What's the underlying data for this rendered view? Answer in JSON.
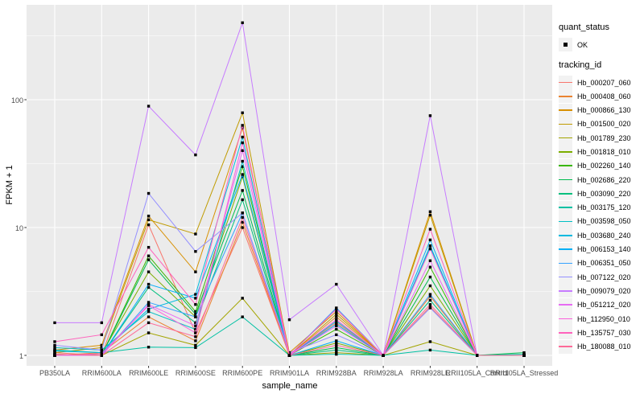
{
  "legend": {
    "quant_status_title": "quant_status",
    "quant_status_items": [
      {
        "label": "OK",
        "marker": "black-square"
      }
    ],
    "tracking_id_title": "tracking_id"
  },
  "chart_data": {
    "type": "line",
    "title": "",
    "xlabel": "sample_name",
    "ylabel": "FPKM + 1",
    "y_scale": "log10",
    "ylim": [
      0.85,
      550
    ],
    "y_ticks": [
      1,
      10,
      100
    ],
    "y_minor_ticks": [
      3.162,
      31.62,
      316.2
    ],
    "grid": "white major+minor on grey panel",
    "panel_bg": "#EBEBEB",
    "grid_color": "#FFFFFF",
    "marker": "small black filled square (quant_status OK)",
    "legend_position": "right",
    "categories": [
      "PB350LA",
      "RRIM600LA",
      "RRIM600LE",
      "RRIM600SE",
      "RRIM600PE",
      "RRIM901LA",
      "RRIM928BA",
      "RRIM928LA",
      "RRIM928LE",
      "RRII105LA_Control",
      "RRII105LA_Stressed"
    ],
    "series": [
      {
        "name": "Hb_000207_060",
        "color": "#F8766D",
        "values": [
          1.05,
          1.0,
          10.5,
          1.5,
          10,
          1.0,
          1.8,
          1.0,
          2.4,
          1.0,
          1.0
        ]
      },
      {
        "name": "Hb_000408_060",
        "color": "#EA8331",
        "values": [
          1.0,
          1.05,
          2.0,
          1.3,
          11,
          1.0,
          2.0,
          1.0,
          2.9,
          1.0,
          1.0
        ]
      },
      {
        "name": "Hb_000866_130",
        "color": "#D89000",
        "values": [
          1.1,
          1.2,
          12.3,
          4.5,
          60,
          1.05,
          2.2,
          1.0,
          13.3,
          1.0,
          1.0
        ]
      },
      {
        "name": "Hb_001500_020",
        "color": "#C09B00",
        "values": [
          1.05,
          1.15,
          11.5,
          8.9,
          79,
          1.0,
          2.1,
          1.0,
          12.5,
          1.0,
          1.0
        ]
      },
      {
        "name": "Hb_001789_230",
        "color": "#A3A500",
        "values": [
          1.0,
          1.0,
          1.5,
          1.2,
          2.8,
          1.0,
          1.05,
          1.0,
          1.28,
          1.0,
          1.0
        ]
      },
      {
        "name": "Hb_001818_010",
        "color": "#7CAE00",
        "values": [
          1.0,
          1.03,
          4.5,
          2.0,
          25,
          1.0,
          1.25,
          1.0,
          3.5,
          1.0,
          1.0
        ]
      },
      {
        "name": "Hb_002260_140",
        "color": "#39B600",
        "values": [
          1.02,
          1.0,
          6.0,
          2.2,
          30,
          1.0,
          1.6,
          1.0,
          4.9,
          1.0,
          1.0
        ]
      },
      {
        "name": "Hb_002686_220",
        "color": "#00BB4E",
        "values": [
          1.0,
          1.0,
          5.6,
          2.1,
          19.5,
          1.0,
          1.15,
          1.0,
          4.1,
          1.0,
          1.05
        ]
      },
      {
        "name": "Hb_003090_220",
        "color": "#00BF7D",
        "values": [
          1.0,
          1.0,
          3.4,
          1.8,
          16.5,
          1.0,
          1.1,
          1.0,
          2.7,
          1.0,
          1.0
        ]
      },
      {
        "name": "Hb_003175_120",
        "color": "#00C1A3",
        "values": [
          1.1,
          1.05,
          1.16,
          1.15,
          2.0,
          1.0,
          1.02,
          1.0,
          1.1,
          1.0,
          1.02
        ]
      },
      {
        "name": "Hb_003598_050",
        "color": "#00BFC4",
        "values": [
          1.15,
          1.1,
          2.2,
          1.6,
          33,
          1.0,
          1.85,
          1.0,
          7.0,
          1.0,
          1.0
        ]
      },
      {
        "name": "Hb_003680_240",
        "color": "#00BAE0",
        "values": [
          1.08,
          1.05,
          2.3,
          3.0,
          51,
          1.0,
          1.75,
          1.0,
          7.2,
          1.0,
          1.0
        ]
      },
      {
        "name": "Hb_006153_140",
        "color": "#00B0F6",
        "values": [
          1.0,
          1.0,
          3.6,
          2.8,
          26,
          1.0,
          1.3,
          1.0,
          8.0,
          1.0,
          1.0
        ]
      },
      {
        "name": "Hb_006351_050",
        "color": "#35A2FF",
        "values": [
          1.0,
          1.0,
          2.6,
          2.0,
          13,
          1.0,
          2.35,
          1.0,
          3.0,
          1.0,
          1.0
        ]
      },
      {
        "name": "Hb_007122_020",
        "color": "#9590FF",
        "values": [
          1.2,
          1.1,
          18.5,
          6.5,
          13,
          1.05,
          1.45,
          1.0,
          2.35,
          1.0,
          1.0
        ]
      },
      {
        "name": "Hb_009079_020",
        "color": "#C77CFF",
        "values": [
          1.8,
          1.8,
          89,
          37,
          400,
          1.9,
          3.6,
          1.0,
          75,
          1.0,
          1.0
        ]
      },
      {
        "name": "Hb_051212_020",
        "color": "#E76BF3",
        "values": [
          1.0,
          1.0,
          2.5,
          1.7,
          40,
          1.0,
          1.7,
          1.0,
          5.5,
          1.0,
          1.0
        ]
      },
      {
        "name": "Hb_112950_010",
        "color": "#FA62DB",
        "values": [
          1.0,
          1.03,
          2.45,
          1.5,
          46,
          1.0,
          1.9,
          1.0,
          6.8,
          1.0,
          1.0
        ]
      },
      {
        "name": "Hb_135757_030",
        "color": "#FF62BC",
        "values": [
          1.28,
          1.45,
          7.0,
          2.5,
          63,
          1.0,
          2.3,
          1.0,
          9.7,
          1.0,
          1.0
        ]
      },
      {
        "name": "Hb_180088_010",
        "color": "#FF6A98",
        "values": [
          1.02,
          1.0,
          1.8,
          1.4,
          12,
          1.0,
          1.2,
          1.0,
          2.5,
          1.0,
          1.0
        ]
      }
    ]
  }
}
